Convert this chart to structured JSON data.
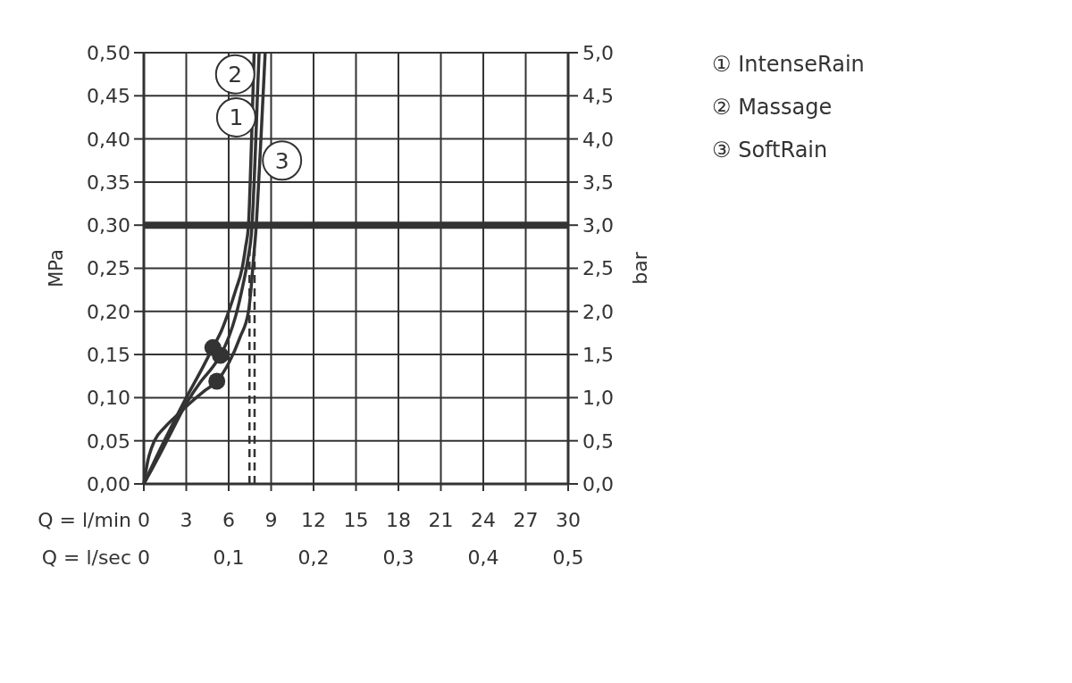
{
  "chart_data": {
    "type": "line",
    "xlabel": "Q = l/min",
    "x2label": "Q = l/sec",
    "ylabel": "MPa",
    "y2label": "bar",
    "xlim": [
      0,
      30
    ],
    "xticks": [
      0,
      3,
      6,
      9,
      12,
      15,
      18,
      21,
      24,
      27,
      30
    ],
    "x2lim": [
      0,
      0.5
    ],
    "x2ticks": [
      0,
      {
        "value": 0.1,
        "label": "0,1"
      },
      {
        "value": 0.2,
        "label": "0,2"
      },
      {
        "value": 0.3,
        "label": "0,3"
      },
      {
        "value": 0.4,
        "label": "0,4"
      },
      {
        "value": 0.5,
        "label": "0,5"
      }
    ],
    "ylim": [
      0,
      0.5
    ],
    "yticks": [
      {
        "value": 0,
        "label": "0,00"
      },
      {
        "value": 0.05,
        "label": "0,05"
      },
      {
        "value": 0.1,
        "label": "0,10"
      },
      {
        "value": 0.15,
        "label": "0,15"
      },
      {
        "value": 0.2,
        "label": "0,20"
      },
      {
        "value": 0.25,
        "label": "0,25"
      },
      {
        "value": 0.3,
        "label": "0,30"
      },
      {
        "value": 0.35,
        "label": "0,35"
      },
      {
        "value": 0.4,
        "label": "0,40"
      },
      {
        "value": 0.45,
        "label": "0,45"
      },
      {
        "value": 0.5,
        "label": "0,50"
      }
    ],
    "y2lim": [
      0,
      5
    ],
    "y2ticks": [
      {
        "value": 0,
        "label": "0,0"
      },
      {
        "value": 0.5,
        "label": "0,5"
      },
      {
        "value": 1,
        "label": "1,0"
      },
      {
        "value": 1.5,
        "label": "1,5"
      },
      {
        "value": 2,
        "label": "2,0"
      },
      {
        "value": 2.5,
        "label": "2,5"
      },
      {
        "value": 3,
        "label": "3,0"
      },
      {
        "value": 3.5,
        "label": "3,5"
      },
      {
        "value": 4,
        "label": "4,0"
      },
      {
        "value": 4.5,
        "label": "4,5"
      },
      {
        "value": 5,
        "label": "5,0"
      }
    ],
    "grid": true,
    "legend": "top right",
    "series": [
      {
        "name": "① IntenseRain",
        "color": "#333333",
        "x": [
          0,
          1,
          2,
          3,
          4,
          4.85,
          5.41,
          6,
          6.5,
          7,
          7.35,
          7.65,
          7.8,
          7.92,
          8.03,
          8.15
        ],
        "values": [
          0,
          0.03,
          0.062,
          0.093,
          0.118,
          0.135,
          0.149,
          0.17,
          0.195,
          0.23,
          0.26,
          0.3,
          0.35,
          0.4,
          0.45,
          0.5
        ]
      },
      {
        "name": "② Massage",
        "color": "#333333",
        "x": [
          0,
          1,
          2,
          3,
          4,
          4.88,
          5.5,
          6.0,
          6.5,
          6.95,
          7.2,
          7.4,
          7.52,
          7.62,
          7.71,
          7.8
        ],
        "values": [
          0,
          0.035,
          0.068,
          0.1,
          0.13,
          0.158,
          0.178,
          0.2,
          0.225,
          0.25,
          0.275,
          0.3,
          0.35,
          0.4,
          0.45,
          0.5
        ]
      },
      {
        "name": "③ SoftRain",
        "color": "#333333",
        "x": [
          0,
          0.3,
          0.75,
          1.5,
          2.5,
          3.5,
          4.3,
          5.16,
          6,
          6.8,
          7.4,
          7.6,
          7.75,
          7.95,
          8.12,
          8.28,
          8.43,
          8.58
        ],
        "values": [
          0,
          0.028,
          0.05,
          0.066,
          0.082,
          0.097,
          0.108,
          0.119,
          0.14,
          0.17,
          0.2,
          0.23,
          0.26,
          0.3,
          0.35,
          0.4,
          0.45,
          0.5
        ]
      },
      {
        "type": "line",
        "line_style": "dashed",
        "color": "#333333",
        "x": [
          7.47,
          7.47
        ],
        "values": [
          0,
          0.27
        ]
      },
      {
        "type": "line",
        "line_style": "dashed",
        "color": "#333333",
        "x": [
          7.83,
          7.83
        ],
        "values": [
          0,
          0.27
        ]
      },
      {
        "type": "scatter",
        "marker": "circle",
        "color": "#333333",
        "x": [
          4.88,
          5.41,
          5.16
        ],
        "values": [
          0.158,
          0.149,
          0.119
        ]
      }
    ],
    "ref_lines": [
      {
        "axis": "y",
        "value": 0.3,
        "color": "#333333"
      }
    ],
    "annotations": [
      {
        "text": "2",
        "x": 6.46,
        "y": 0.475
      },
      {
        "text": "1",
        "x": 6.53,
        "y": 0.425
      },
      {
        "text": "3",
        "x": 9.77,
        "y": 0.375
      }
    ]
  }
}
